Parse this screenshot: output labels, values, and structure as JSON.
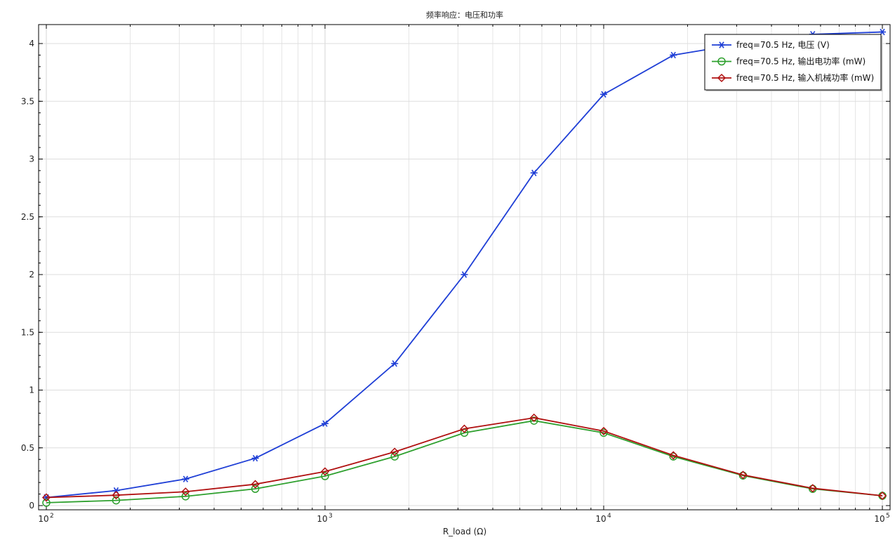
{
  "chart_data": {
    "type": "line",
    "title": "频率响应：电压和功率",
    "xlabel": "R_load (Ω)",
    "ylabel": "",
    "xscale": "log",
    "xlim": [
      100,
      100000
    ],
    "ylim": [
      -0.02,
      4.15
    ],
    "grid": true,
    "legend_position": "top-right",
    "x_tick_labels": [
      {
        "base": "10",
        "exp": "2",
        "value": 100
      },
      {
        "base": "10",
        "exp": "3",
        "value": 1000
      },
      {
        "base": "10",
        "exp": "4",
        "value": 10000
      },
      {
        "base": "10",
        "exp": "5",
        "value": 100000
      }
    ],
    "y_ticks": [
      0,
      0.5,
      1,
      1.5,
      2,
      2.5,
      3,
      3.5,
      4
    ],
    "y_tick_labels": [
      "0",
      "0.5",
      "1",
      "1.5",
      "2",
      "2.5",
      "3",
      "3.5",
      "4"
    ],
    "x": [
      100,
      178,
      316,
      562,
      1000,
      1778,
      3162,
      5623,
      10000,
      17783,
      31623,
      56234,
      100000
    ],
    "series": [
      {
        "name": "freq=70.5 Hz, 电压 (V)",
        "color": "#1f3fd6",
        "marker": "asterisk",
        "values": [
          0.07,
          0.13,
          0.23,
          0.41,
          0.71,
          1.23,
          2.0,
          2.88,
          3.56,
          3.9,
          4.0,
          4.08,
          4.1
        ]
      },
      {
        "name": "freq=70.5 Hz, 输出电功率 (mW)",
        "color": "#2ea02e",
        "marker": "circle",
        "values": [
          0.025,
          0.045,
          0.08,
          0.145,
          0.255,
          0.425,
          0.63,
          0.735,
          0.63,
          0.425,
          0.26,
          0.145,
          0.085
        ]
      },
      {
        "name": "freq=70.5 Hz, 输入机械功率 (mW)",
        "color": "#b01010",
        "marker": "diamond",
        "values": [
          0.07,
          0.09,
          0.12,
          0.185,
          0.295,
          0.465,
          0.665,
          0.76,
          0.645,
          0.435,
          0.265,
          0.15,
          0.085
        ]
      }
    ]
  }
}
